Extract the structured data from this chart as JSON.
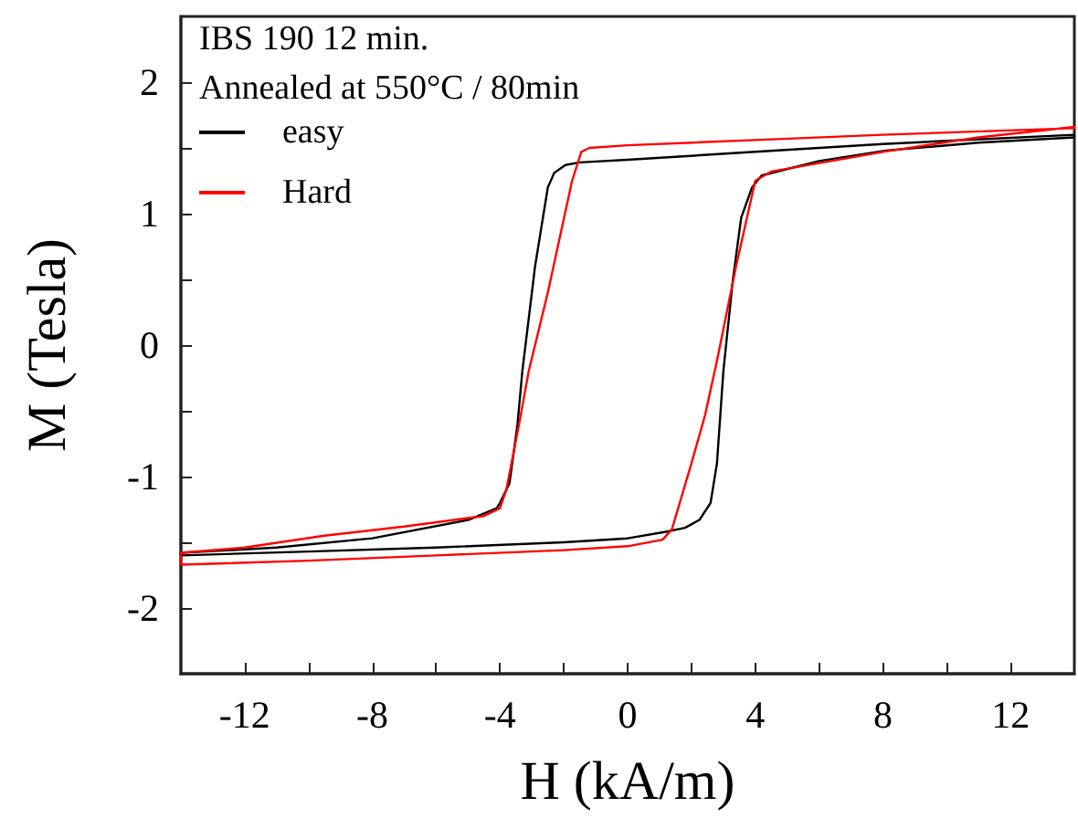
{
  "chart_data": {
    "type": "line",
    "xlabel": "H (kA/m)",
    "ylabel": "M (Tesla)",
    "annotations": [
      "IBS 190 12 min.",
      "Annealed at 550°C / 80min"
    ],
    "xlim": [
      -14,
      14
    ],
    "ylim": [
      -2.5,
      2.5
    ],
    "xticks": [
      -12,
      {
        "value": -10,
        "label": null
      },
      -8,
      {
        "value": -6,
        "label": null
      },
      -4,
      {
        "value": -2,
        "label": null
      },
      0,
      {
        "value": 2,
        "label": null
      },
      4,
      {
        "value": 6,
        "label": null
      },
      8,
      {
        "value": 10,
        "label": null
      },
      12
    ],
    "yticks": [
      -2,
      {
        "value": -1.5,
        "label": null
      },
      -1,
      {
        "value": -0.5,
        "label": null
      },
      0,
      {
        "value": 0.5,
        "label": null
      },
      1,
      {
        "value": 1.5,
        "label": null
      },
      2
    ],
    "legend": "top left",
    "grid": false,
    "marker": "none",
    "line_style": "solid",
    "series": [
      {
        "name": "easy",
        "color": "#000000",
        "x": [
          14,
          8,
          4,
          0,
          -1.5,
          -1.95,
          -2.3,
          -2.5,
          -2.9,
          -3.3,
          -3.45,
          -3.7,
          -4.0,
          -4.1,
          -5,
          -8,
          -11,
          -14,
          -14,
          -10,
          -6,
          -2,
          0,
          1.2,
          1.8,
          2.25,
          2.6,
          2.8,
          3.0,
          3.3,
          3.56,
          3.9,
          4.2,
          6,
          8.1,
          11,
          14
        ],
        "values": [
          1.6,
          1.53,
          1.47,
          1.41,
          1.39,
          1.37,
          1.31,
          1.2,
          0.6,
          -0.2,
          -0.6,
          -1.05,
          -1.2,
          -1.24,
          -1.33,
          -1.47,
          -1.54,
          -1.58,
          -1.6,
          -1.57,
          -1.54,
          -1.5,
          -1.47,
          -1.42,
          -1.39,
          -1.33,
          -1.2,
          -0.9,
          -0.2,
          0.5,
          0.97,
          1.2,
          1.29,
          1.4,
          1.48,
          1.54,
          1.58
        ]
      },
      {
        "name": "Hard",
        "color": "#ff0000",
        "x": [
          14,
          8,
          4,
          0,
          -1.2,
          -1.45,
          -1.74,
          -2.5,
          -3.1,
          -3.4,
          -3.8,
          -4.0,
          -4.5,
          -7,
          -9.5,
          -12,
          -14,
          -14,
          -10,
          -6,
          -2,
          0,
          1.1,
          1.39,
          2.0,
          2.43,
          2.8,
          3.4,
          4.0,
          4.5,
          8,
          11,
          14
        ],
        "values": [
          1.65,
          1.6,
          1.56,
          1.52,
          1.5,
          1.47,
          1.25,
          0.4,
          -0.2,
          -0.6,
          -1.1,
          -1.24,
          -1.3,
          -1.38,
          -1.45,
          -1.54,
          -1.58,
          -1.67,
          -1.64,
          -1.6,
          -1.56,
          -1.53,
          -1.48,
          -1.4,
          -0.9,
          -0.53,
          -0.12,
          0.6,
          1.25,
          1.32,
          1.47,
          1.58,
          1.66
        ]
      }
    ]
  }
}
